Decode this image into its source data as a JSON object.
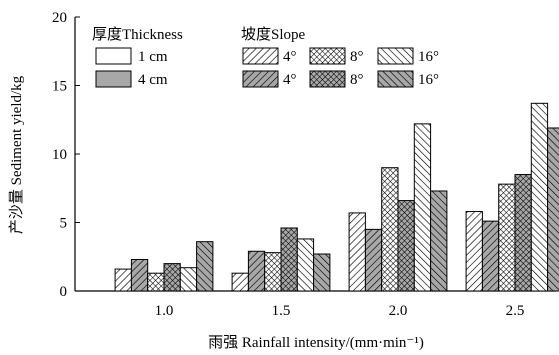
{
  "chart_data": {
    "type": "bar",
    "xlabel": "雨强 Rainfall intensity/(mm·min⁻¹)",
    "ylabel": "产沙量 Sediment yield/kg",
    "ylim": [
      0,
      20
    ],
    "yticks": [
      "0",
      "5",
      "10",
      "15",
      "20"
    ],
    "categories": [
      "1.0",
      "1.5",
      "2.0",
      "2.5"
    ],
    "legend": {
      "thickness_title": "厚度Thickness",
      "slope_title": "坡度Slope",
      "thickness_items": [
        "1 cm",
        "4 cm"
      ],
      "slope_items": [
        "4°",
        "8°",
        "16°"
      ]
    },
    "series": [
      {
        "thickness": "1 cm",
        "slope": "4°",
        "pattern": "hatch-light",
        "values": [
          1.6,
          1.3,
          5.7,
          5.8
        ]
      },
      {
        "thickness": "4 cm",
        "slope": "4°",
        "pattern": "hatch-dark",
        "values": [
          2.3,
          2.9,
          4.5,
          5.1
        ]
      },
      {
        "thickness": "1 cm",
        "slope": "8°",
        "pattern": "cross-light",
        "values": [
          1.3,
          2.8,
          9.0,
          7.8
        ]
      },
      {
        "thickness": "4 cm",
        "slope": "8°",
        "pattern": "cross-dark",
        "values": [
          2.0,
          4.6,
          6.6,
          8.5
        ]
      },
      {
        "thickness": "1 cm",
        "slope": "16°",
        "pattern": "back-light",
        "values": [
          1.7,
          3.8,
          12.2,
          13.7
        ]
      },
      {
        "thickness": "4 cm",
        "slope": "16°",
        "pattern": "back-dark",
        "values": [
          3.6,
          2.7,
          7.3,
          11.9
        ]
      }
    ]
  }
}
